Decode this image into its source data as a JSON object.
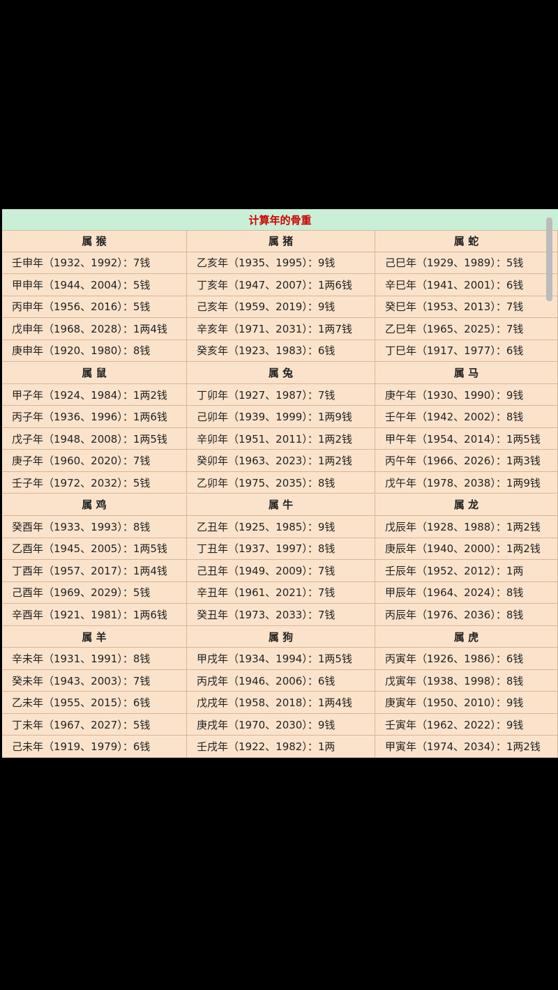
{
  "table": {
    "title": "计算年的骨重",
    "groups": [
      {
        "headers": [
          "属 猴",
          "属 猪",
          "属 蛇"
        ],
        "rows": [
          [
            "壬申年（1932、1992）：7钱",
            "乙亥年（1935、1995）：9钱",
            "己巳年（1929、1989）：5钱"
          ],
          [
            "甲申年（1944、2004）：5钱",
            "丁亥年（1947、2007）：1两6钱",
            "辛巳年（1941、2001）：6钱"
          ],
          [
            "丙申年（1956、2016）：5钱",
            "己亥年（1959、2019）：9钱",
            "癸巳年（1953、2013）：7钱"
          ],
          [
            "戊申年（1968、2028）：1两4钱",
            "辛亥年（1971、2031）：1两7钱",
            "乙巳年（1965、2025）：7钱"
          ],
          [
            "庚申年（1920、1980）：8钱",
            "癸亥年（1923、1983）：6钱",
            "丁巳年（1917、1977）：6钱"
          ]
        ]
      },
      {
        "headers": [
          "属 鼠",
          "属 兔",
          "属 马"
        ],
        "rows": [
          [
            "甲子年（1924、1984）：1两2钱",
            "丁卯年（1927、1987）：7钱",
            "庚午年（1930、1990）：9钱"
          ],
          [
            "丙子年（1936、1996）：1两6钱",
            "己卯年（1939、1999）：1两9钱",
            "壬午年（1942、2002）：8钱"
          ],
          [
            "戊子年（1948、2008）：1两5钱",
            "辛卯年（1951、2011）：1两2钱",
            "甲午年（1954、2014）：1两5钱"
          ],
          [
            "庚子年（1960、2020）：7钱",
            "癸卯年（1963、2023）：1两2钱",
            "丙午年（1966、2026）：1两3钱"
          ],
          [
            "壬子年（1972、2032）：5钱",
            "乙卯年（1975、2035）：8钱",
            "戊午年（1978、2038）：1两9钱"
          ]
        ]
      },
      {
        "headers": [
          "属 鸡",
          "属 牛",
          "属 龙"
        ],
        "rows": [
          [
            "癸酉年（1933、1993）：8钱",
            "乙丑年（1925、1985）：9钱",
            "戊辰年（1928、1988）：1两2钱"
          ],
          [
            "乙酉年（1945、2005）：1两5钱",
            "丁丑年（1937、1997）：8钱",
            "庚辰年（1940、2000）：1两2钱"
          ],
          [
            "丁酉年（1957、2017）：1两4钱",
            "己丑年（1949、2009）：7钱",
            "壬辰年（1952、2012）：1两"
          ],
          [
            "己酉年（1969、2029）：5钱",
            "辛丑年（1961、2021）：7钱",
            "甲辰年（1964、2024）：8钱"
          ],
          [
            "辛酉年（1921、1981）：1两6钱",
            "癸丑年（1973、2033）：7钱",
            "丙辰年（1976、2036）：8钱"
          ]
        ]
      },
      {
        "headers": [
          "属 羊",
          "属 狗",
          "属 虎"
        ],
        "rows": [
          [
            "辛未年（1931、1991）：8钱",
            "甲戌年（1934、1994）：1两5钱",
            "丙寅年（1926、1986）：6钱"
          ],
          [
            "癸未年（1943、2003）：7钱",
            "丙戌年（1946、2006）：6钱",
            "戊寅年（1938、1998）：8钱"
          ],
          [
            "乙未年（1955、2015）：6钱",
            "戊戌年（1958、2018）：1两4钱",
            "庚寅年（1950、2010）：9钱"
          ],
          [
            "丁未年（1967、2027）：5钱",
            "庚戌年（1970、2030）：9钱",
            "壬寅年（1962、2022）：9钱"
          ],
          [
            "己未年（1919、1979）：6钱",
            "壬戌年（1922、1982）：1两",
            "甲寅年（1974、2034）：1两2钱"
          ]
        ]
      }
    ]
  }
}
